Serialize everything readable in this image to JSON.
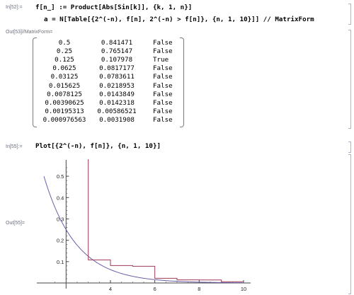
{
  "cells": {
    "in52_label": "In[52]:=",
    "in52_line1": "f[n_] := Product[Abs[Sin[k]], {k, 1, n}]",
    "in52_line2": "a = N[Table[{2^(-n), f[n], 2^(-n) > f[n]}, {n, 1, 10}]] // MatrixForm",
    "out53_label": "Out[53]//MatrixForm=",
    "in55_label": "In[55]:=",
    "in55_code": "Plot[{2^(-n), f[n]}, {n, 1, 10}]",
    "out55_label": "Out[55]="
  },
  "matrix": [
    [
      "0.5",
      "0.841471",
      "False"
    ],
    [
      "0.25",
      "0.765147",
      "False"
    ],
    [
      "0.125",
      "0.107978",
      "True"
    ],
    [
      "0.0625",
      "0.0817177",
      "False"
    ],
    [
      "0.03125",
      "0.0783611",
      "False"
    ],
    [
      "0.015625",
      "0.0218953",
      "False"
    ],
    [
      "0.0078125",
      "0.0143849",
      "False"
    ],
    [
      "0.00390625",
      "0.0142318",
      "False"
    ],
    [
      "0.00195313",
      "0.00586521",
      "False"
    ],
    [
      "0.000976563",
      "0.0031908",
      "False"
    ]
  ],
  "chart_data": {
    "type": "line",
    "x_range": [
      1,
      10
    ],
    "y_range": [
      0,
      0.55
    ],
    "x_ticks": [
      "4",
      "6",
      "8",
      "10"
    ],
    "y_ticks": [
      "0.1",
      "0.2",
      "0.3",
      "0.4",
      "0.5"
    ],
    "series": [
      {
        "color": "#6a5fa8",
        "x": [
          1,
          1.5,
          2,
          2.5,
          3,
          3.5,
          4,
          4.5,
          5,
          5.5,
          6,
          6.5,
          7,
          7.5,
          8,
          8.5,
          9,
          9.5,
          10
        ],
        "y": [
          0.5,
          0.354,
          0.25,
          0.177,
          0.125,
          0.088,
          0.0625,
          0.044,
          0.03125,
          0.022,
          0.0156,
          0.011,
          0.0078,
          0.0055,
          0.0039,
          0.0028,
          0.00195,
          0.0014,
          0.00098
        ]
      },
      {
        "color": "#9b3b5a",
        "steps_x": [
          3,
          4,
          5,
          6,
          7,
          8,
          9,
          10
        ],
        "steps_y": [
          0.107978,
          0.0817177,
          0.0783611,
          0.0218953,
          0.0143849,
          0.0142318,
          0.00586521,
          0.0031908
        ],
        "spike_top": 0.58
      }
    ]
  }
}
